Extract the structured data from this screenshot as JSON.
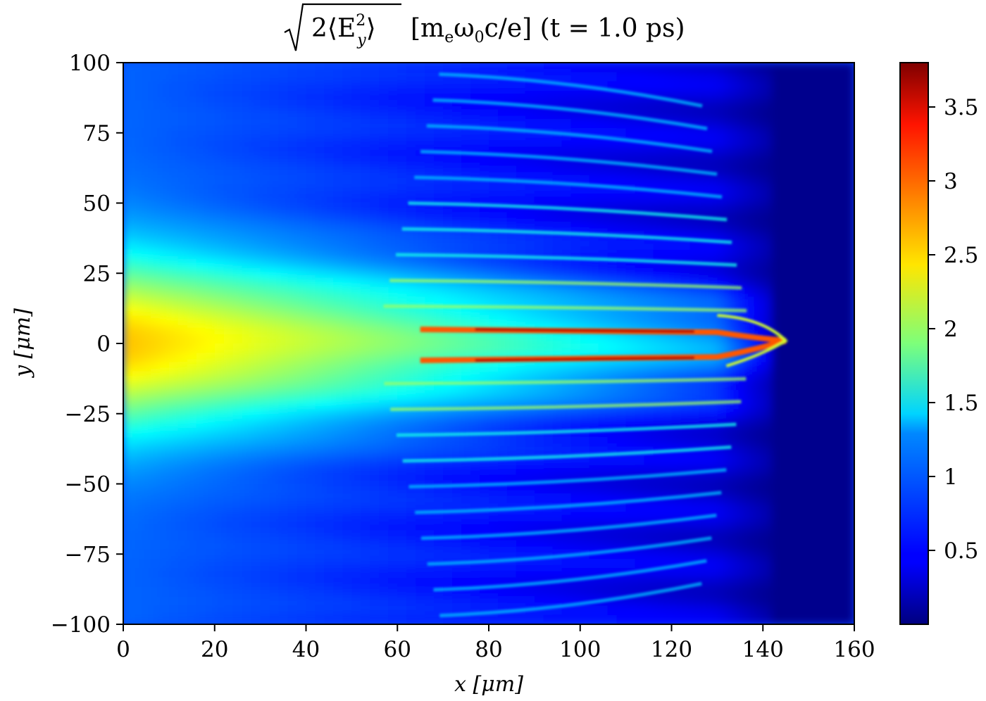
{
  "chart_data": {
    "type": "heatmap",
    "title_sqrt": "2⟨E",
    "title_sub": "y",
    "title_sup": "2",
    "title_close": "⟩",
    "title_units": "[m",
    "title_units_sub": "e",
    "title_units_mid": "ω",
    "title_units_sub2": "0",
    "title_units_end": "c/e] (t = 1.0 ps)",
    "xlabel": "x [μm]",
    "ylabel": "y [μm]",
    "xlim": [
      0,
      160
    ],
    "ylim": [
      -100,
      100
    ],
    "x_ticks": [
      0,
      20,
      40,
      60,
      80,
      100,
      120,
      140,
      160
    ],
    "x_tick_labels": [
      "0",
      "20",
      "40",
      "60",
      "80",
      "100",
      "120",
      "140",
      "160"
    ],
    "y_ticks": [
      100,
      75,
      50,
      25,
      0,
      -25,
      -50,
      -75,
      -100
    ],
    "y_tick_labels": [
      "100",
      "75",
      "50",
      "25",
      "0",
      "−25",
      "−50",
      "−75",
      "−100"
    ],
    "colorbar": {
      "colormap": "jet",
      "vmin": 0,
      "vmax": 3.8,
      "ticks": [
        0.5,
        1,
        1.5,
        2,
        2.5,
        3,
        3.5
      ],
      "tick_labels": [
        "0.5",
        "1",
        "1.5",
        "2",
        "2.5",
        "3",
        "3.5"
      ]
    },
    "field_features": {
      "background_level": 0.75,
      "beam_core_level": 2.2,
      "filament_level": 3.6,
      "filament_y": [
        5,
        -6
      ],
      "filament_x_range": [
        65,
        130
      ],
      "beam_front_x": 145,
      "unperturbed_region_x": [
        142,
        160
      ],
      "unperturbed_level": 0.05
    },
    "grid": false
  }
}
